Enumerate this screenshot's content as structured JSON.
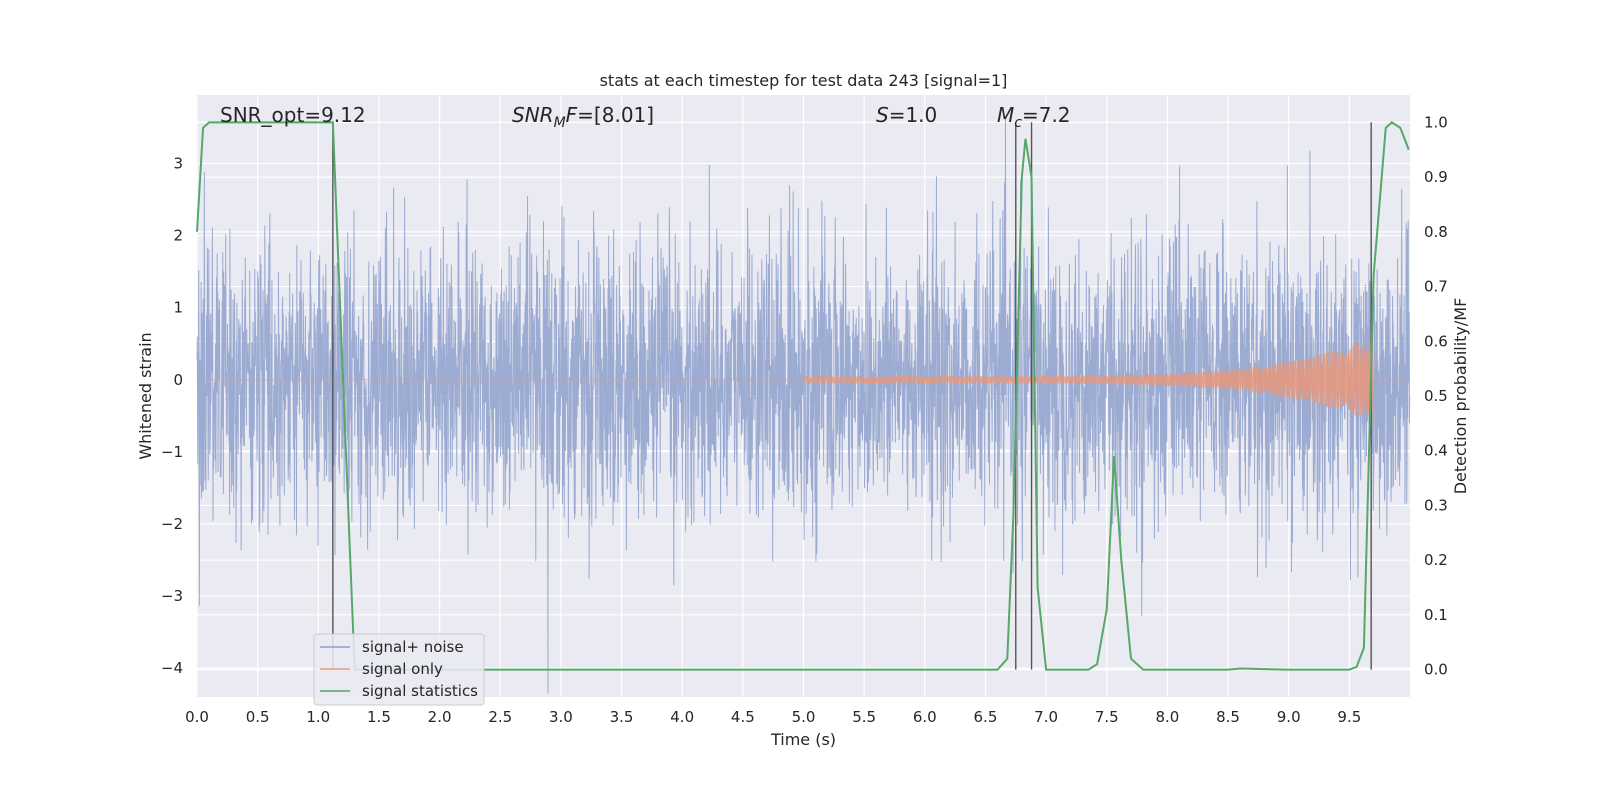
{
  "chart_data": {
    "type": "line",
    "title": "stats at each timestep for test data 243 [signal=1]",
    "xlabel": "Time (s)",
    "ylabel_left": "Whitened strain",
    "ylabel_right": "Detection probability/MF",
    "xlim": [
      0.0,
      10.0
    ],
    "ylim_left": [
      -4.4,
      3.95
    ],
    "ylim_right": [
      -0.05,
      1.05
    ],
    "x_ticks": [
      "0.0",
      "0.5",
      "1.0",
      "1.5",
      "2.0",
      "2.5",
      "3.0",
      "3.5",
      "4.0",
      "4.5",
      "5.0",
      "5.5",
      "6.0",
      "6.5",
      "7.0",
      "7.5",
      "8.0",
      "8.5",
      "9.0",
      "9.5"
    ],
    "y_ticks_left": [
      "−4",
      "−3",
      "−2",
      "−1",
      "0",
      "1",
      "2",
      "3"
    ],
    "y_ticks_right": [
      "0.0",
      "0.1",
      "0.2",
      "0.3",
      "0.4",
      "0.5",
      "0.6",
      "0.7",
      "0.8",
      "0.9",
      "1.0"
    ],
    "annotations": {
      "snr_opt": "SNR_opt=9.12",
      "snr_mf_prefix": "SNR",
      "snr_mf_sub": "M",
      "snr_mf_suffix": "F=[8.01]",
      "s_prefix": "S",
      "s_suffix": "=1.0",
      "mc_prefix": "M",
      "mc_sub": "c",
      "mc_suffix": "=7.2"
    },
    "series": [
      {
        "name": "signal+ noise",
        "color": "#8da0cb",
        "description_kind": "noise",
        "envelope_upper_approx": 1.8,
        "envelope_lower_approx": -1.8
      },
      {
        "name": "signal only",
        "color": "#e9967a",
        "chirp_start": 5.0,
        "chirp_end": 9.7,
        "peak_amplitude": 0.6
      },
      {
        "name": "signal statistics",
        "color": "#55a868",
        "axis": "right",
        "x": [
          0.0,
          0.05,
          0.1,
          0.2,
          0.5,
          1.0,
          1.12,
          1.2,
          1.3,
          1.5,
          2.0,
          3.0,
          4.0,
          5.0,
          6.0,
          6.5,
          6.6,
          6.68,
          6.73,
          6.8,
          6.83,
          6.88,
          6.93,
          7.0,
          7.1,
          7.2,
          7.35,
          7.42,
          7.5,
          7.56,
          7.62,
          7.7,
          7.8,
          8.0,
          8.5,
          8.6,
          9.0,
          9.5,
          9.56,
          9.62,
          9.7,
          9.8,
          9.85,
          9.92,
          9.99
        ],
        "values": [
          0.8,
          0.99,
          1.0,
          1.0,
          1.0,
          1.0,
          1.0,
          0.55,
          0.0,
          0.0,
          0.0,
          0.0,
          0.0,
          0.0,
          0.0,
          0.0,
          0.0,
          0.02,
          0.28,
          0.9,
          0.97,
          0.9,
          0.15,
          0.0,
          0.0,
          0.0,
          0.0,
          0.01,
          0.11,
          0.39,
          0.2,
          0.02,
          0.0,
          0.0,
          0.0,
          0.002,
          0.0,
          0.0,
          0.005,
          0.04,
          0.72,
          0.99,
          1.0,
          0.99,
          0.95
        ]
      }
    ],
    "vertical_markers": [
      1.12,
      6.75,
      6.88,
      9.68
    ],
    "legend": {
      "position": "bottom-left",
      "entries": [
        "signal+ noise",
        "signal only",
        "signal statistics"
      ]
    },
    "grid": true,
    "background": "#eaeaf2"
  }
}
